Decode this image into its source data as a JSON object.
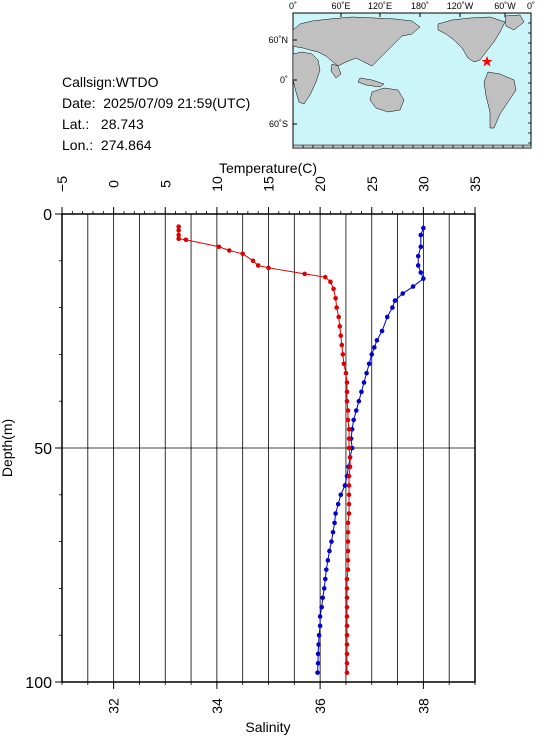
{
  "station": {
    "callsign_label": "Callsign:",
    "callsign": "WTDO",
    "date_label": "Date:",
    "date": "2025/07/09 21:59(UTC)",
    "lat_label": "Lat.:",
    "lat": "28.743",
    "lon_label": "Lon.:",
    "lon": "274.864"
  },
  "map": {
    "top_ticks": [
      "0˚",
      "60˚E",
      "120˚E",
      "180˚",
      "120˚W",
      "60˚W",
      "0˚"
    ],
    "left_ticks": [
      "60˚N",
      "0˚",
      "60˚S"
    ],
    "ocean_color": "#ccf5fa",
    "land_color": "#c0c0c0",
    "marker_color": "#ff0000",
    "marker": {
      "lat": 28.743,
      "lon": 274.864
    }
  },
  "chart_data": {
    "type": "line",
    "ylabel": "Depth(m)",
    "xlabel_top": "Temperature(C)",
    "xlabel_bottom": "Salinity",
    "depth_range": [
      0,
      100
    ],
    "depth_ticks": [
      "0",
      "50",
      "100"
    ],
    "temperature_range": [
      -5,
      35
    ],
    "temperature_ticks": [
      "−5",
      "0",
      "5",
      "10",
      "15",
      "20",
      "25",
      "30",
      "35"
    ],
    "salinity_range": [
      31,
      39
    ],
    "salinity_ticks": [
      "32",
      "34",
      "36",
      "38"
    ],
    "grid": true,
    "series": [
      {
        "quantity": "salinity",
        "color": "#0000cc",
        "points": [
          [
            38.0,
            3.0
          ],
          [
            37.95,
            4.5
          ],
          [
            37.95,
            7
          ],
          [
            37.9,
            9
          ],
          [
            37.9,
            11
          ],
          [
            37.95,
            12.5
          ],
          [
            38.0,
            13.8
          ],
          [
            37.8,
            15.5
          ],
          [
            37.6,
            17
          ],
          [
            37.45,
            18.5
          ],
          [
            37.4,
            20
          ],
          [
            37.3,
            22
          ],
          [
            37.2,
            25
          ],
          [
            37.1,
            27
          ],
          [
            37.05,
            28.5
          ],
          [
            37.0,
            30
          ],
          [
            36.95,
            32
          ],
          [
            36.9,
            34
          ],
          [
            36.85,
            36
          ],
          [
            36.8,
            38
          ],
          [
            36.75,
            40
          ],
          [
            36.7,
            42
          ],
          [
            36.65,
            44
          ],
          [
            36.62,
            46
          ],
          [
            36.6,
            48
          ],
          [
            36.62,
            50
          ],
          [
            36.58,
            52
          ],
          [
            36.55,
            54
          ],
          [
            36.52,
            56
          ],
          [
            36.48,
            58
          ],
          [
            36.4,
            60
          ],
          [
            36.35,
            62
          ],
          [
            36.3,
            64
          ],
          [
            36.28,
            66
          ],
          [
            36.25,
            68
          ],
          [
            36.22,
            70
          ],
          [
            36.18,
            72
          ],
          [
            36.15,
            74
          ],
          [
            36.12,
            76
          ],
          [
            36.1,
            78
          ],
          [
            36.08,
            80
          ],
          [
            36.05,
            82
          ],
          [
            36.03,
            84
          ],
          [
            36.0,
            86
          ],
          [
            36.0,
            88
          ],
          [
            35.98,
            90
          ],
          [
            35.97,
            92
          ],
          [
            35.96,
            94
          ],
          [
            35.96,
            96
          ],
          [
            35.95,
            98
          ]
        ]
      },
      {
        "quantity": "temperature",
        "color": "#dd0000",
        "points": [
          [
            6.3,
            2.7
          ],
          [
            6.3,
            3.5
          ],
          [
            6.3,
            4.5
          ],
          [
            6.3,
            5.3
          ],
          [
            7.0,
            5.5
          ],
          [
            10.2,
            7.0
          ],
          [
            11.2,
            7.8
          ],
          [
            12.5,
            8.5
          ],
          [
            13.5,
            10.0
          ],
          [
            14.0,
            11.0
          ],
          [
            15.0,
            11.5
          ],
          [
            18.5,
            12.8
          ],
          [
            20.5,
            13.5
          ],
          [
            21.0,
            14.5
          ],
          [
            21.3,
            16.0
          ],
          [
            21.5,
            18.0
          ],
          [
            21.6,
            20.0
          ],
          [
            21.8,
            22.0
          ],
          [
            21.9,
            24.0
          ],
          [
            22.0,
            26.0
          ],
          [
            22.1,
            28.0
          ],
          [
            22.2,
            30.0
          ],
          [
            22.3,
            32.0
          ],
          [
            22.5,
            34.0
          ],
          [
            22.6,
            36.0
          ],
          [
            22.6,
            38.0
          ],
          [
            22.6,
            40.0
          ],
          [
            22.7,
            42.0
          ],
          [
            22.7,
            44.0
          ],
          [
            22.8,
            46.0
          ],
          [
            22.8,
            48.0
          ],
          [
            22.8,
            50.0
          ],
          [
            22.9,
            52.0
          ],
          [
            22.9,
            54.0
          ],
          [
            22.8,
            56.0
          ],
          [
            22.8,
            58.0
          ],
          [
            22.8,
            60.0
          ],
          [
            22.8,
            62.0
          ],
          [
            22.8,
            64.0
          ],
          [
            22.7,
            66.0
          ],
          [
            22.7,
            68.0
          ],
          [
            22.7,
            70.0
          ],
          [
            22.7,
            72.0
          ],
          [
            22.7,
            74.0
          ],
          [
            22.7,
            76.0
          ],
          [
            22.6,
            78.0
          ],
          [
            22.6,
            80.0
          ],
          [
            22.6,
            82.0
          ],
          [
            22.6,
            84.0
          ],
          [
            22.6,
            86.0
          ],
          [
            22.6,
            88.0
          ],
          [
            22.6,
            90.0
          ],
          [
            22.6,
            92.0
          ],
          [
            22.6,
            94.0
          ],
          [
            22.6,
            96.0
          ],
          [
            22.6,
            98.0
          ]
        ]
      }
    ]
  }
}
